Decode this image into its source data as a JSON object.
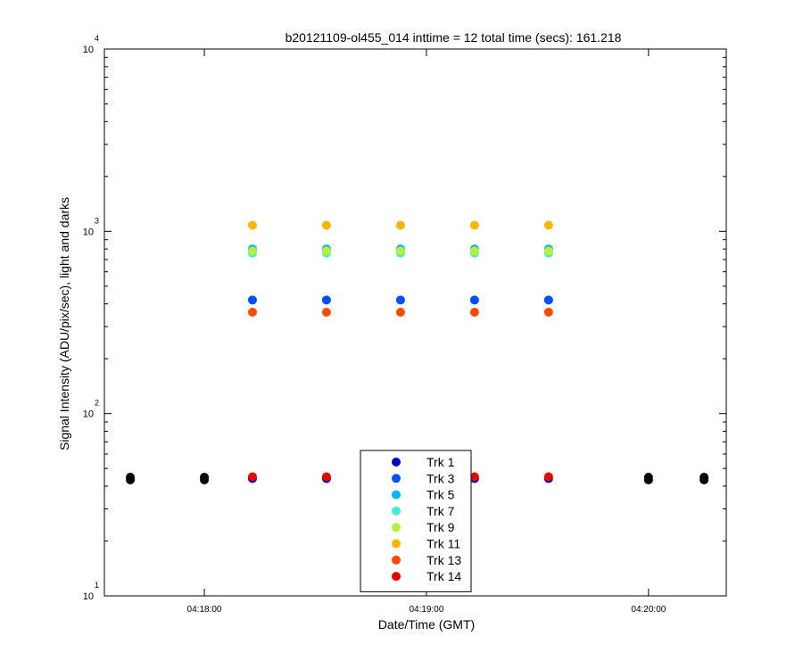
{
  "chart_data": {
    "type": "scatter",
    "title": "b20121109-ol455_014 inttime = 12 total time (secs): 161.218",
    "xlabel": "Date/Time (GMT)",
    "ylabel": "Signal Intensity (ADU/pix/sec), light and darks",
    "yscale": "log",
    "ylim": [
      10,
      10000
    ],
    "xlim": [
      "04:17:33",
      "04:20:21"
    ],
    "x_ticks": [
      "04:18:00",
      "04:19:00",
      "04:20:00"
    ],
    "y_ticks": [
      {
        "base": "10",
        "exp": "1",
        "value": 10
      },
      {
        "base": "10",
        "exp": "2",
        "value": 100
      },
      {
        "base": "10",
        "exp": "3",
        "value": 1000
      },
      {
        "base": "10",
        "exp": "4",
        "value": 10000
      }
    ],
    "grid": false,
    "legend_position": "bottom-center",
    "light_times": [
      "04:18:13",
      "04:18:33",
      "04:18:53",
      "04:19:13",
      "04:19:33"
    ],
    "series": [
      {
        "name": "Trk 1",
        "color": "#0000c8",
        "values": [
          44,
          44,
          44,
          44,
          44
        ]
      },
      {
        "name": "Trk 3",
        "color": "#0050ff",
        "values": [
          420,
          420,
          420,
          420,
          420
        ]
      },
      {
        "name": "Trk 5",
        "color": "#00b4ff",
        "values": [
          800,
          800,
          800,
          800,
          800
        ]
      },
      {
        "name": "Trk 7",
        "color": "#40f0c8",
        "values": [
          760,
          760,
          760,
          760,
          760
        ]
      },
      {
        "name": "Trk 9",
        "color": "#b4f03c",
        "values": [
          780,
          780,
          780,
          780,
          780
        ]
      },
      {
        "name": "Trk 11",
        "color": "#ffb400",
        "values": [
          1080,
          1080,
          1080,
          1080,
          1080
        ]
      },
      {
        "name": "Trk 13",
        "color": "#ff4a00",
        "values": [
          360,
          360,
          360,
          360,
          360
        ]
      },
      {
        "name": "Trk 14",
        "color": "#e60000",
        "values": [
          45,
          45,
          45,
          45,
          45
        ]
      }
    ],
    "darks": {
      "color": "#000000",
      "times": [
        "04:17:40",
        "04:18:00",
        "04:20:00",
        "04:20:15"
      ],
      "values": [
        44,
        44,
        44,
        44
      ]
    }
  }
}
